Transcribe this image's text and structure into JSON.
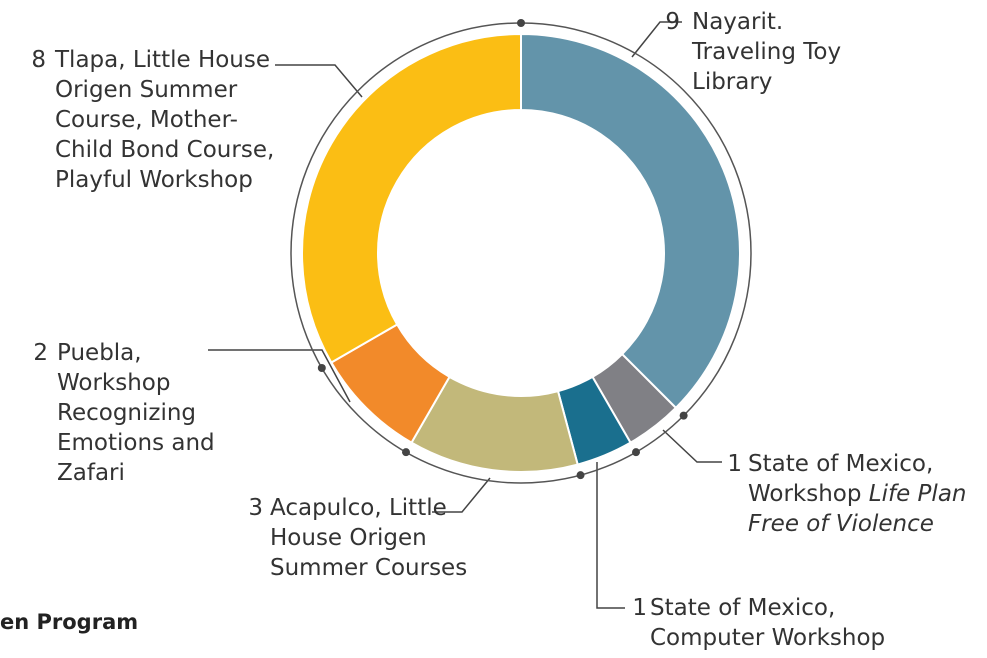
{
  "chart_data": {
    "type": "donut",
    "categories": [
      "Nayarit. Traveling Toy Library",
      {
        "text": "State of Mexico, Workshop",
        "emphasis": "Life Plan Free of Violence"
      },
      "State of Mexico, Computer Workshop",
      "Acapulco, Little House Origen Summer Courses",
      "Puebla, Workshop Recognizing Emotions and Zafari",
      "Tlapa, Little House Origen Summer Course, Mother-Child Bond Course, Playful Workshop"
    ],
    "values": [
      9,
      1,
      1,
      3,
      2,
      8
    ],
    "colors": [
      "#6394aa",
      "#808085",
      "#1a6f8e",
      "#c2b87a",
      "#f28a2a",
      "#fbbe14"
    ]
  },
  "footer_text": "en Program"
}
